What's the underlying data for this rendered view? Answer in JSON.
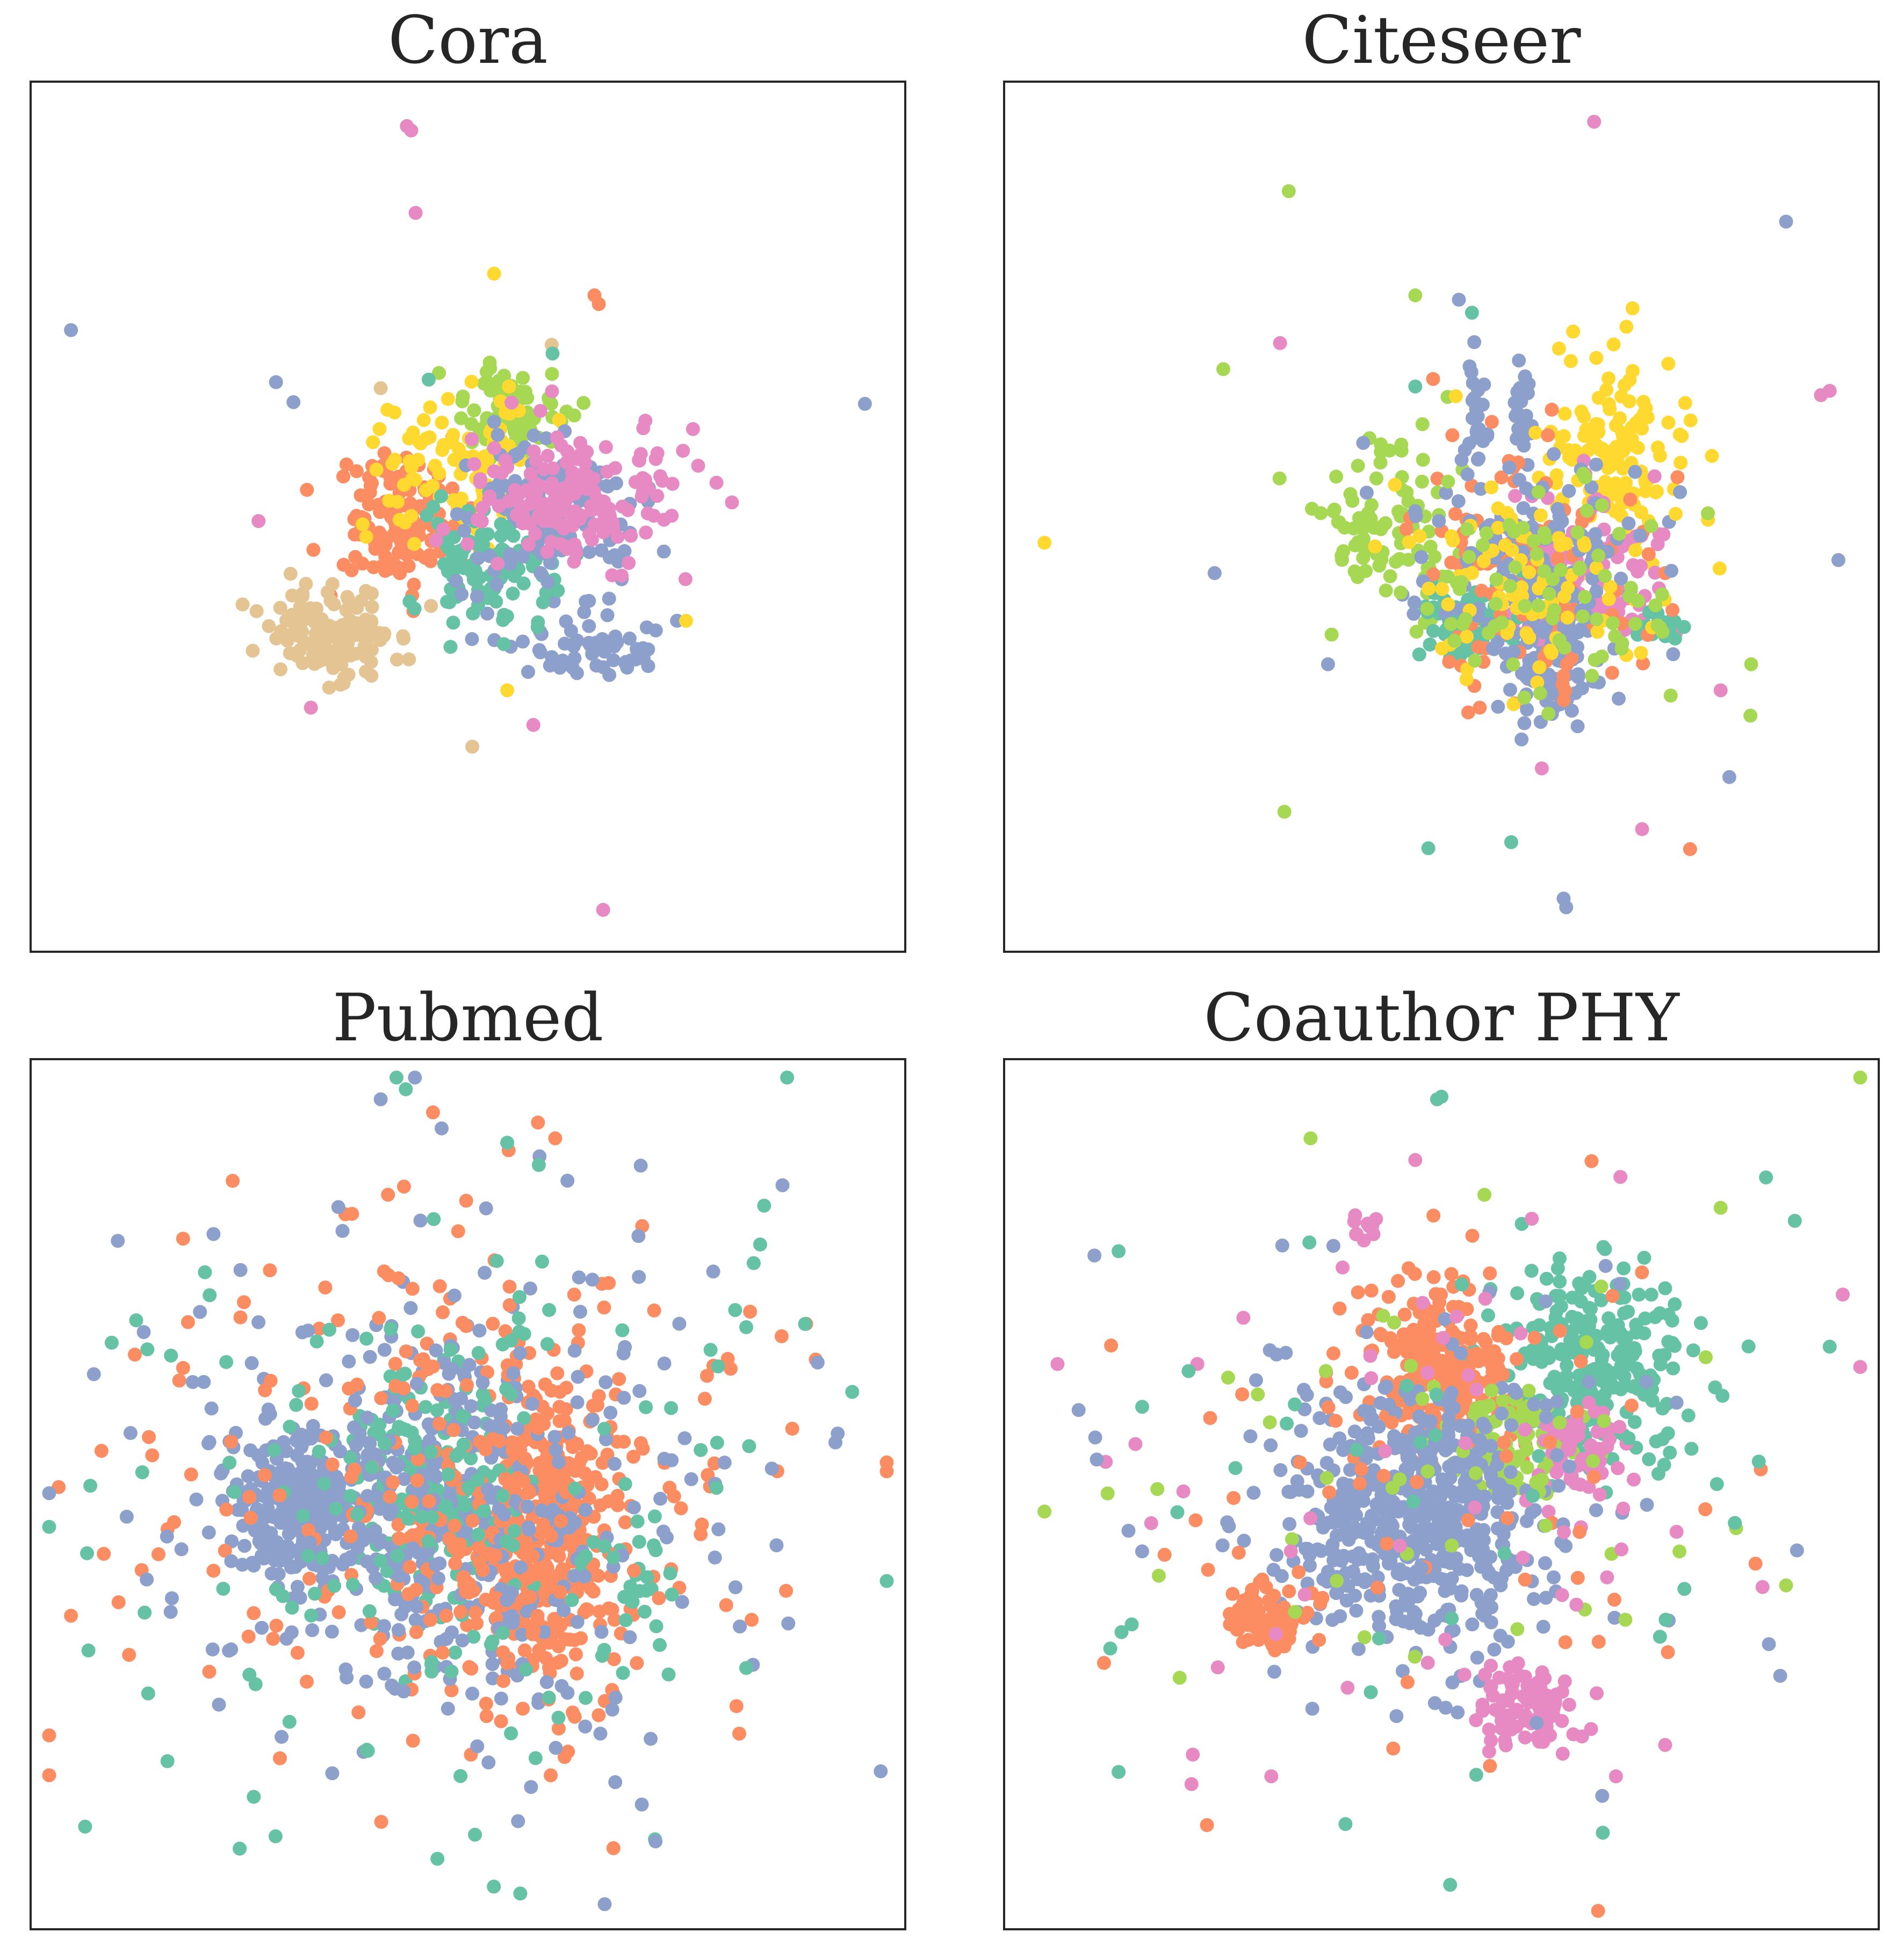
{
  "palette": {
    "teal": "#66c2a5",
    "orange": "#fc8d62",
    "blue": "#8da0cb",
    "pink": "#e78ac3",
    "green": "#a6d854",
    "yellow": "#ffd92f",
    "tan": "#e5c494"
  },
  "chart_data": [
    {
      "type": "scatter",
      "title": "Cora",
      "xlabel": "",
      "ylabel": "",
      "axes_ticks": false,
      "grid": false,
      "legend": "none",
      "xlim": [
        0,
        1
      ],
      "ylim": [
        0,
        1
      ],
      "singles": [
        {
          "color": "pink",
          "x": 0.43,
          "y": 0.95
        },
        {
          "color": "pink",
          "x": 0.435,
          "y": 0.945
        },
        {
          "color": "pink",
          "x": 0.44,
          "y": 0.85
        },
        {
          "color": "yellow",
          "x": 0.53,
          "y": 0.78
        },
        {
          "color": "orange",
          "x": 0.645,
          "y": 0.755
        },
        {
          "color": "orange",
          "x": 0.65,
          "y": 0.745
        },
        {
          "color": "blue",
          "x": 0.045,
          "y": 0.715
        },
        {
          "color": "tan",
          "x": 0.596,
          "y": 0.698
        },
        {
          "color": "teal",
          "x": 0.597,
          "y": 0.688
        },
        {
          "color": "blue",
          "x": 0.28,
          "y": 0.655
        },
        {
          "color": "blue",
          "x": 0.3,
          "y": 0.632
        },
        {
          "color": "tan",
          "x": 0.4,
          "y": 0.648
        },
        {
          "color": "teal",
          "x": 0.455,
          "y": 0.658
        },
        {
          "color": "blue",
          "x": 0.955,
          "y": 0.63
        },
        {
          "color": "pink",
          "x": 0.26,
          "y": 0.495
        },
        {
          "color": "yellow",
          "x": 0.75,
          "y": 0.38
        },
        {
          "color": "yellow",
          "x": 0.545,
          "y": 0.3
        },
        {
          "color": "pink",
          "x": 0.32,
          "y": 0.28
        },
        {
          "color": "pink",
          "x": 0.575,
          "y": 0.26
        },
        {
          "color": "tan",
          "x": 0.505,
          "y": 0.235
        },
        {
          "color": "pink",
          "x": 0.655,
          "y": 0.047
        },
        {
          "color": "teal",
          "x": 0.48,
          "y": 0.35
        }
      ],
      "clusters": [
        {
          "color": "orange",
          "x": 0.42,
          "y": 0.495,
          "sx": 0.04,
          "sy": 0.04,
          "n": 120
        },
        {
          "color": "tan",
          "x": 0.34,
          "y": 0.365,
          "sx": 0.04,
          "sy": 0.025,
          "n": 130
        },
        {
          "color": "blue",
          "x": 0.63,
          "y": 0.35,
          "sx": 0.05,
          "sy": 0.02,
          "n": 60
        },
        {
          "color": "green",
          "x": 0.545,
          "y": 0.615,
          "sx": 0.03,
          "sy": 0.03,
          "n": 90
        },
        {
          "color": "yellow",
          "x": 0.49,
          "y": 0.56,
          "sx": 0.05,
          "sy": 0.04,
          "n": 90
        },
        {
          "color": "teal",
          "x": 0.52,
          "y": 0.45,
          "sx": 0.045,
          "sy": 0.04,
          "n": 110
        },
        {
          "color": "blue",
          "x": 0.6,
          "y": 0.505,
          "sx": 0.05,
          "sy": 0.04,
          "n": 140
        },
        {
          "color": "pink",
          "x": 0.61,
          "y": 0.52,
          "sx": 0.06,
          "sy": 0.04,
          "n": 180
        }
      ]
    },
    {
      "type": "scatter",
      "title": "Citeseer",
      "xlabel": "",
      "ylabel": "",
      "axes_ticks": false,
      "grid": false,
      "legend": "none",
      "xlim": [
        0,
        1
      ],
      "ylim": [
        0,
        1
      ],
      "singles": [
        {
          "color": "pink",
          "x": 0.675,
          "y": 0.955
        },
        {
          "color": "green",
          "x": 0.325,
          "y": 0.875
        },
        {
          "color": "blue",
          "x": 0.895,
          "y": 0.84
        },
        {
          "color": "green",
          "x": 0.47,
          "y": 0.755
        },
        {
          "color": "pink",
          "x": 0.315,
          "y": 0.7
        },
        {
          "color": "green",
          "x": 0.25,
          "y": 0.67
        },
        {
          "color": "pink",
          "x": 0.935,
          "y": 0.64
        },
        {
          "color": "pink",
          "x": 0.945,
          "y": 0.645
        },
        {
          "color": "yellow",
          "x": 0.045,
          "y": 0.47
        },
        {
          "color": "blue",
          "x": 0.24,
          "y": 0.435
        },
        {
          "color": "blue",
          "x": 0.955,
          "y": 0.45
        },
        {
          "color": "green",
          "x": 0.32,
          "y": 0.16
        },
        {
          "color": "teal",
          "x": 0.485,
          "y": 0.118
        },
        {
          "color": "teal",
          "x": 0.58,
          "y": 0.125
        },
        {
          "color": "orange",
          "x": 0.785,
          "y": 0.117
        },
        {
          "color": "pink",
          "x": 0.73,
          "y": 0.14
        },
        {
          "color": "blue",
          "x": 0.64,
          "y": 0.06
        },
        {
          "color": "blue",
          "x": 0.643,
          "y": 0.05
        },
        {
          "color": "blue",
          "x": 0.83,
          "y": 0.2
        },
        {
          "color": "green",
          "x": 0.855,
          "y": 0.33
        },
        {
          "color": "pink",
          "x": 0.82,
          "y": 0.3
        },
        {
          "color": "blue",
          "x": 0.37,
          "y": 0.33
        },
        {
          "color": "teal",
          "x": 0.47,
          "y": 0.65
        },
        {
          "color": "blue",
          "x": 0.52,
          "y": 0.75
        },
        {
          "color": "teal",
          "x": 0.535,
          "y": 0.735
        },
        {
          "color": "yellow",
          "x": 0.81,
          "y": 0.57
        },
        {
          "color": "pink",
          "x": 0.615,
          "y": 0.21
        }
      ],
      "clusters": [
        {
          "color": "blue",
          "x": 0.54,
          "y": 0.62,
          "sx": 0.006,
          "sy": 0.04,
          "n": 25
        },
        {
          "color": "blue",
          "x": 0.595,
          "y": 0.62,
          "sx": 0.006,
          "sy": 0.04,
          "n": 25
        },
        {
          "color": "blue",
          "x": 0.625,
          "y": 0.345,
          "sx": 0.025,
          "sy": 0.04,
          "n": 120
        },
        {
          "color": "green",
          "x": 0.44,
          "y": 0.48,
          "sx": 0.04,
          "sy": 0.06,
          "n": 90
        },
        {
          "color": "yellow",
          "x": 0.7,
          "y": 0.57,
          "sx": 0.04,
          "sy": 0.06,
          "n": 130
        },
        {
          "color": "pink",
          "x": 0.665,
          "y": 0.44,
          "sx": 0.05,
          "sy": 0.05,
          "n": 100
        },
        {
          "color": "teal",
          "x": 0.535,
          "y": 0.375,
          "sx": 0.03,
          "sy": 0.025,
          "n": 90
        },
        {
          "color": "teal",
          "x": 0.75,
          "y": 0.375,
          "sx": 0.015,
          "sy": 0.01,
          "n": 20
        },
        {
          "color": "orange",
          "x": 0.6,
          "y": 0.43,
          "sx": 0.07,
          "sy": 0.07,
          "n": 110
        },
        {
          "color": "blue",
          "x": 0.6,
          "y": 0.45,
          "sx": 0.07,
          "sy": 0.06,
          "n": 140
        },
        {
          "color": "yellow",
          "x": 0.6,
          "y": 0.43,
          "sx": 0.07,
          "sy": 0.06,
          "n": 90
        },
        {
          "color": "green",
          "x": 0.62,
          "y": 0.41,
          "sx": 0.09,
          "sy": 0.07,
          "n": 80
        }
      ]
    },
    {
      "type": "scatter",
      "title": "Pubmed",
      "xlabel": "",
      "ylabel": "",
      "axes_ticks": false,
      "grid": false,
      "legend": "none",
      "xlim": [
        0,
        1
      ],
      "ylim": [
        0,
        1
      ],
      "singles": [
        {
          "color": "blue",
          "x": 0.4,
          "y": 0.955
        },
        {
          "color": "orange",
          "x": 0.46,
          "y": 0.94
        },
        {
          "color": "teal",
          "x": 0.545,
          "y": 0.905
        },
        {
          "color": "orange",
          "x": 0.6,
          "y": 0.91
        },
        {
          "color": "teal",
          "x": 0.065,
          "y": 0.32
        },
        {
          "color": "orange",
          "x": 0.045,
          "y": 0.36
        },
        {
          "color": "teal",
          "x": 0.98,
          "y": 0.4
        },
        {
          "color": "orange",
          "x": 0.08,
          "y": 0.55
        },
        {
          "color": "teal",
          "x": 0.56,
          "y": 0.04
        },
        {
          "color": "teal",
          "x": 0.465,
          "y": 0.08
        },
        {
          "color": "blue",
          "x": 0.715,
          "y": 0.1
        }
      ],
      "clusters": [
        {
          "color": "blue",
          "x": 0.31,
          "y": 0.48,
          "sx": 0.04,
          "sy": 0.045,
          "n": 260
        },
        {
          "color": "orange",
          "x": 0.59,
          "y": 0.45,
          "sx": 0.04,
          "sy": 0.09,
          "n": 320
        },
        {
          "color": "teal",
          "x": 0.46,
          "y": 0.5,
          "sx": 0.05,
          "sy": 0.07,
          "n": 170
        },
        {
          "color": "blue",
          "x": 0.48,
          "y": 0.48,
          "sx": 0.08,
          "sy": 0.1,
          "n": 280
        },
        {
          "color": "orange",
          "x": 0.52,
          "y": 0.47,
          "sx": 0.09,
          "sy": 0.1,
          "n": 160
        },
        {
          "color": "teal",
          "x": 0.7,
          "y": 0.4,
          "sx": 0.01,
          "sy": 0.03,
          "n": 20
        },
        {
          "color": "orange",
          "x": 0.5,
          "y": 0.5,
          "sx": 0.22,
          "sy": 0.19,
          "n": 170
        },
        {
          "color": "blue",
          "x": 0.5,
          "y": 0.5,
          "sx": 0.22,
          "sy": 0.19,
          "n": 170
        },
        {
          "color": "teal",
          "x": 0.5,
          "y": 0.5,
          "sx": 0.22,
          "sy": 0.19,
          "n": 150
        }
      ]
    },
    {
      "type": "scatter",
      "title": "Coauthor PHY",
      "xlabel": "",
      "ylabel": "",
      "axes_ticks": false,
      "grid": false,
      "legend": "none",
      "xlim": [
        0,
        1
      ],
      "ylim": [
        0,
        1
      ],
      "singles": [
        {
          "color": "teal",
          "x": 0.495,
          "y": 0.955
        },
        {
          "color": "teal",
          "x": 0.5,
          "y": 0.958
        },
        {
          "color": "green",
          "x": 0.35,
          "y": 0.91
        },
        {
          "color": "pink",
          "x": 0.47,
          "y": 0.885
        },
        {
          "color": "green",
          "x": 0.82,
          "y": 0.83
        },
        {
          "color": "teal",
          "x": 0.905,
          "y": 0.815
        },
        {
          "color": "teal",
          "x": 0.13,
          "y": 0.78
        },
        {
          "color": "pink",
          "x": 0.06,
          "y": 0.65
        },
        {
          "color": "blue",
          "x": 0.105,
          "y": 0.54
        },
        {
          "color": "green",
          "x": 0.045,
          "y": 0.48
        },
        {
          "color": "teal",
          "x": 0.145,
          "y": 0.35
        },
        {
          "color": "teal",
          "x": 0.13,
          "y": 0.18
        },
        {
          "color": "pink",
          "x": 0.215,
          "y": 0.2
        },
        {
          "color": "pink",
          "x": 0.305,
          "y": 0.175
        },
        {
          "color": "teal",
          "x": 0.39,
          "y": 0.12
        },
        {
          "color": "teal",
          "x": 0.51,
          "y": 0.05
        },
        {
          "color": "pink",
          "x": 0.7,
          "y": 0.175
        },
        {
          "color": "teal",
          "x": 0.685,
          "y": 0.11
        },
        {
          "color": "pink",
          "x": 0.96,
          "y": 0.73
        },
        {
          "color": "teal",
          "x": 0.945,
          "y": 0.67
        },
        {
          "color": "green",
          "x": 0.895,
          "y": 0.395
        },
        {
          "color": "orange",
          "x": 0.86,
          "y": 0.42
        }
      ],
      "clusters": [
        {
          "color": "teal",
          "x": 0.675,
          "y": 0.65,
          "sx": 0.055,
          "sy": 0.055,
          "n": 260
        },
        {
          "color": "orange",
          "x": 0.5,
          "y": 0.64,
          "sx": 0.045,
          "sy": 0.05,
          "n": 240
        },
        {
          "color": "green",
          "x": 0.58,
          "y": 0.56,
          "sx": 0.035,
          "sy": 0.03,
          "n": 90
        },
        {
          "color": "pink",
          "x": 0.66,
          "y": 0.55,
          "sx": 0.03,
          "sy": 0.03,
          "n": 60
        },
        {
          "color": "blue",
          "x": 0.47,
          "y": 0.47,
          "sx": 0.07,
          "sy": 0.07,
          "n": 520
        },
        {
          "color": "orange",
          "x": 0.3,
          "y": 0.36,
          "sx": 0.022,
          "sy": 0.022,
          "n": 80
        },
        {
          "color": "pink",
          "x": 0.6,
          "y": 0.26,
          "sx": 0.025,
          "sy": 0.025,
          "n": 100
        },
        {
          "color": "pink",
          "x": 0.41,
          "y": 0.805,
          "sx": 0.012,
          "sy": 0.01,
          "n": 10
        },
        {
          "color": "orange",
          "x": 0.5,
          "y": 0.5,
          "sx": 0.17,
          "sy": 0.15,
          "n": 60
        },
        {
          "color": "blue",
          "x": 0.5,
          "y": 0.5,
          "sx": 0.17,
          "sy": 0.15,
          "n": 70
        },
        {
          "color": "green",
          "x": 0.5,
          "y": 0.5,
          "sx": 0.2,
          "sy": 0.17,
          "n": 45
        },
        {
          "color": "pink",
          "x": 0.5,
          "y": 0.5,
          "sx": 0.2,
          "sy": 0.17,
          "n": 45
        },
        {
          "color": "teal",
          "x": 0.5,
          "y": 0.5,
          "sx": 0.2,
          "sy": 0.17,
          "n": 35
        }
      ]
    }
  ]
}
